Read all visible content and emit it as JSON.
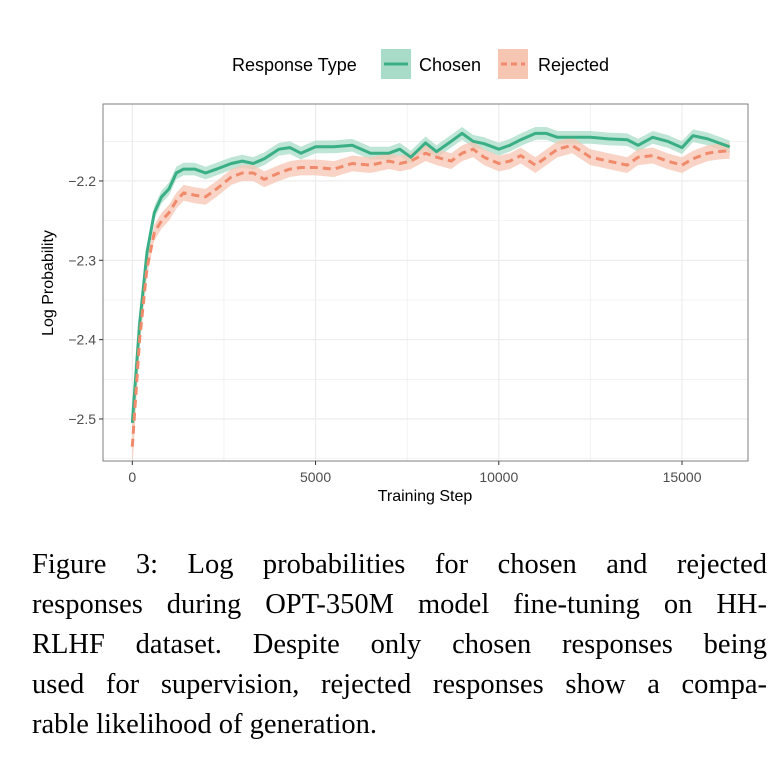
{
  "chart_data": {
    "type": "line",
    "title": "",
    "xlabel": "Training Step",
    "ylabel": "Log Probability",
    "xlim": [
      -800,
      16800
    ],
    "ylim": [
      -2.553,
      -2.103
    ],
    "x_ticks": [
      0,
      5000,
      10000,
      15000
    ],
    "x_tick_labels": [
      "0",
      "5000",
      "10000",
      "15000"
    ],
    "y_ticks": [
      -2.2,
      -2.3,
      -2.4,
      -2.5
    ],
    "y_tick_labels": [
      "−2.2",
      "−2.3",
      "−2.4",
      "−2.5"
    ],
    "grid": true,
    "legend": {
      "title": "Response Type",
      "position": "top",
      "entries": [
        "Chosen",
        "Rejected"
      ]
    },
    "series": [
      {
        "name": "Chosen",
        "color": "#3aaf85",
        "band_color": "#a8dcc8",
        "line_style": "solid",
        "x": [
          0,
          200,
          400,
          600,
          800,
          1000,
          1200,
          1400,
          1700,
          2000,
          2300,
          2700,
          3000,
          3300,
          3600,
          4000,
          4300,
          4600,
          5000,
          5500,
          6000,
          6500,
          7000,
          7300,
          7600,
          8000,
          8300,
          8700,
          9000,
          9300,
          9600,
          10000,
          10300,
          10600,
          11000,
          11300,
          11600,
          12000,
          12500,
          13000,
          13500,
          13800,
          14200,
          14600,
          15000,
          15300,
          15700,
          16000,
          16300
        ],
        "y": [
          -2.505,
          -2.38,
          -2.29,
          -2.24,
          -2.22,
          -2.21,
          -2.19,
          -2.185,
          -2.185,
          -2.19,
          -2.185,
          -2.178,
          -2.175,
          -2.178,
          -2.172,
          -2.16,
          -2.158,
          -2.165,
          -2.157,
          -2.157,
          -2.155,
          -2.165,
          -2.165,
          -2.16,
          -2.17,
          -2.152,
          -2.163,
          -2.15,
          -2.14,
          -2.15,
          -2.153,
          -2.16,
          -2.155,
          -2.148,
          -2.14,
          -2.14,
          -2.145,
          -2.145,
          -2.145,
          -2.147,
          -2.148,
          -2.155,
          -2.145,
          -2.15,
          -2.158,
          -2.143,
          -2.147,
          -2.152,
          -2.157
        ],
        "band_halfwidth": 0.008
      },
      {
        "name": "Rejected",
        "color": "#f08a6b",
        "band_color": "#f7c6b3",
        "line_style": "dashed",
        "x": [
          0,
          200,
          400,
          600,
          800,
          1000,
          1200,
          1400,
          1700,
          2000,
          2300,
          2700,
          3000,
          3300,
          3600,
          4000,
          4300,
          4600,
          5000,
          5500,
          6000,
          6500,
          7000,
          7300,
          7600,
          8000,
          8300,
          8700,
          9000,
          9300,
          9600,
          10000,
          10300,
          10600,
          11000,
          11300,
          11600,
          12000,
          12500,
          13000,
          13500,
          13800,
          14200,
          14600,
          15000,
          15300,
          15700,
          16000,
          16300
        ],
        "y": [
          -2.535,
          -2.4,
          -2.31,
          -2.265,
          -2.25,
          -2.24,
          -2.225,
          -2.215,
          -2.218,
          -2.22,
          -2.21,
          -2.195,
          -2.19,
          -2.19,
          -2.198,
          -2.19,
          -2.185,
          -2.183,
          -2.183,
          -2.185,
          -2.178,
          -2.18,
          -2.175,
          -2.178,
          -2.175,
          -2.165,
          -2.17,
          -2.175,
          -2.165,
          -2.16,
          -2.17,
          -2.178,
          -2.175,
          -2.168,
          -2.18,
          -2.17,
          -2.16,
          -2.155,
          -2.17,
          -2.175,
          -2.18,
          -2.17,
          -2.168,
          -2.175,
          -2.18,
          -2.172,
          -2.165,
          -2.163,
          -2.162
        ],
        "band_halfwidth": 0.01
      }
    ]
  },
  "caption": {
    "lines": [
      "Figure 3:  Log probabilities for chosen and rejected",
      "responses during OPT-350M model fine-tuning on HH-",
      "RLHF dataset.  Despite only chosen responses being",
      "used for supervision, rejected responses show a compa-",
      "rable likelihood of generation."
    ]
  }
}
